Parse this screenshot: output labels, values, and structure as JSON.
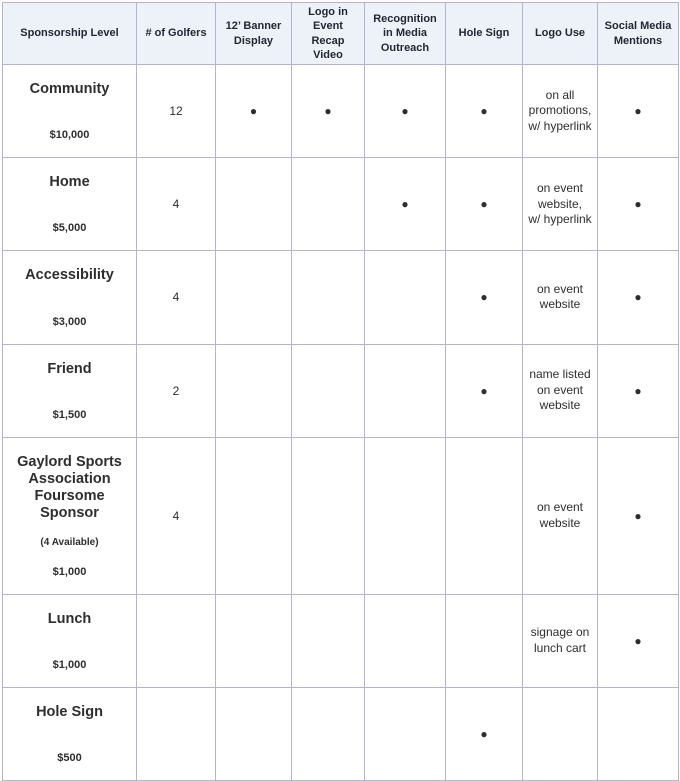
{
  "colors": {
    "level_cell_bg": "#3d55a6",
    "level_cell_text": "#ffffff",
    "header_bg": "#edf2f8",
    "header_text": "#232733",
    "grid_border": "#b5b2d3",
    "dot": "#000000",
    "body_text": "#2e2e2e"
  },
  "table": {
    "columns": [
      "Sponsorship Level",
      "# of Golfers",
      "12’ Banner\nDisplay",
      "Logo in Event\nRecap Video",
      "Recognition\nin Media\nOutreach",
      "Hole Sign",
      "Logo Use",
      "Social Media\nMentions"
    ],
    "rows": [
      {
        "level": "Community",
        "note": "",
        "price": "$10,000",
        "golfers": "12",
        "banner_display": "●",
        "recap_video": "●",
        "media_outreach": "●",
        "hole_sign": "●",
        "logo_use": "on all\npromotions,\nw/ hyperlink",
        "social_media": "●"
      },
      {
        "level": "Home",
        "note": "",
        "price": "$5,000",
        "golfers": "4",
        "banner_display": "",
        "recap_video": "",
        "media_outreach": "●",
        "hole_sign": "●",
        "logo_use": "on event\nwebsite,\nw/ hyperlink",
        "social_media": "●"
      },
      {
        "level": "Accessibility",
        "note": "",
        "price": "$3,000",
        "golfers": "4",
        "banner_display": "",
        "recap_video": "",
        "media_outreach": "",
        "hole_sign": "●",
        "logo_use": "on event\nwebsite",
        "social_media": "●"
      },
      {
        "level": "Friend",
        "note": "",
        "price": "$1,500",
        "golfers": "2",
        "banner_display": "",
        "recap_video": "",
        "media_outreach": "",
        "hole_sign": "●",
        "logo_use": "name listed\non event\nwebsite",
        "social_media": "●"
      },
      {
        "level": "Gaylord Sports\nAssociation\nFoursome Sponsor",
        "note": "(4 Available)",
        "price": "$1,000",
        "golfers": "4",
        "banner_display": "",
        "recap_video": "",
        "media_outreach": "",
        "hole_sign": "",
        "logo_use": "on event\nwebsite",
        "social_media": "●"
      },
      {
        "level": "Lunch",
        "note": "",
        "price": "$1,000",
        "golfers": "",
        "banner_display": "",
        "recap_video": "",
        "media_outreach": "",
        "hole_sign": "",
        "logo_use": "signage on\nlunch cart",
        "social_media": "●"
      },
      {
        "level": "Hole Sign",
        "note": "",
        "price": "$500",
        "golfers": "",
        "banner_display": "",
        "recap_video": "",
        "media_outreach": "",
        "hole_sign": "●",
        "logo_use": "",
        "social_media": ""
      }
    ]
  }
}
